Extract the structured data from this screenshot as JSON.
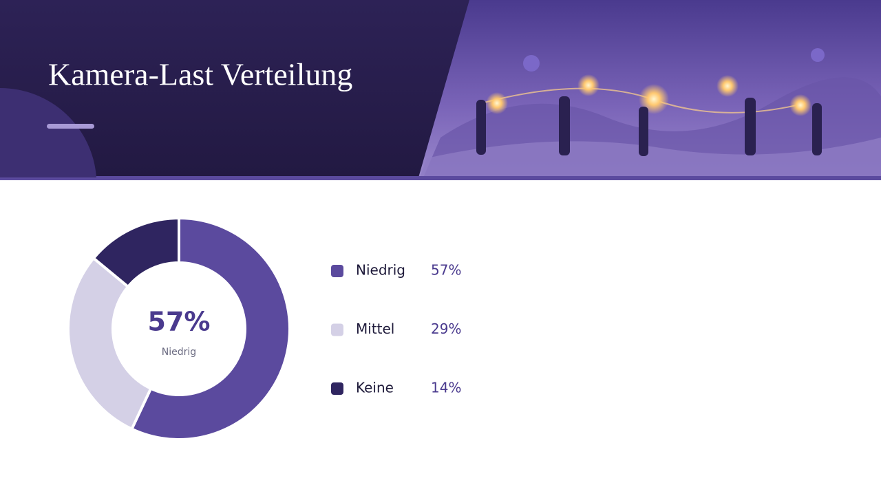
{
  "chart_data": {
    "type": "donut",
    "title": "Kamera-Last Verteilung",
    "categories": [
      "Niedrig",
      "Mittel",
      "Keine"
    ],
    "values": [
      57,
      29,
      14
    ],
    "value_labels": [
      "57%",
      "29%",
      "14%"
    ],
    "colors": [
      "#5b4a9e",
      "#d4d0e6",
      "#2f2560"
    ]
  }
}
